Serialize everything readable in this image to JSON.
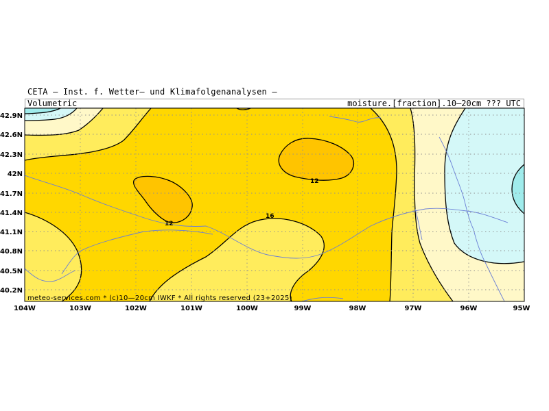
{
  "header": {
    "title": "CETA — Inst. f. Wetter— und Klimafolgenanalysen —",
    "subtitle_left": "Volumetric",
    "subtitle_right": "moisture.[fraction].10—20cm ??? UTC"
  },
  "map": {
    "lat_labels": [
      "42.9N",
      "42.6N",
      "42.3N",
      "42N",
      "41.7N",
      "41.4N",
      "41.1N",
      "40.8N",
      "40.5N",
      "40.2N"
    ],
    "lon_labels": [
      "104W",
      "103W",
      "102W",
      "101W",
      "100W",
      "99W",
      "98W",
      "97W",
      "96W",
      "95W"
    ],
    "contour_labels": [
      "12",
      "12",
      "16"
    ],
    "copyright": "meteo-services.com * (c)10—20cm IWKF * All rights reserved (23+2025)",
    "colors": {
      "level_lt12": "#ffc400",
      "level_12_16": "#ffd700",
      "level_16_20": "#ffec5c",
      "level_20_24": "#fff8c8",
      "level_24_28": "#d4f8f8",
      "level_gt28": "#a0ecec",
      "grid": "#909090",
      "rivers": "#6a7fd6"
    }
  }
}
